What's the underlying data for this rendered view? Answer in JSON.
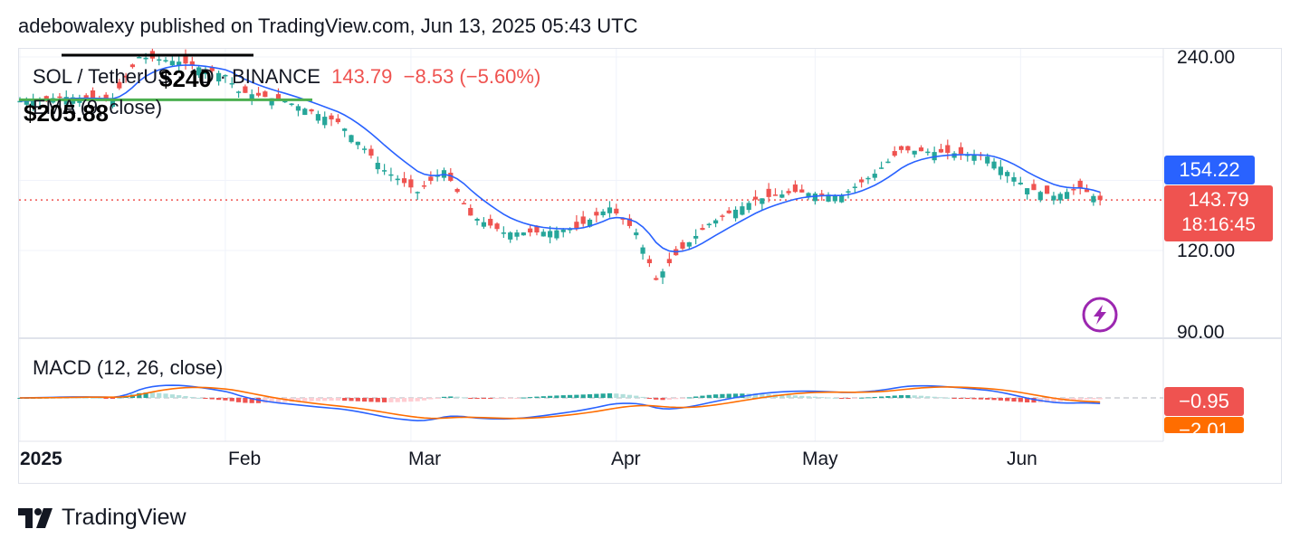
{
  "header": {
    "publish_line": "adebowalexy published on TradingView.com, Jun 13, 2025 05:43 UTC"
  },
  "legend": {
    "symbol": "SOL / TetherUS · 1D · BINANCE",
    "last": "143.79",
    "change": "−8.53 (−5.60%)",
    "ema": "EMA (9, close)"
  },
  "annotations": {
    "high_label": "$240",
    "low_label": "$205.88"
  },
  "price_axis": {
    "ticks": [
      "240.00",
      "120.00",
      "90.00"
    ],
    "ema_tag": "154.22",
    "last_tag": "143.79",
    "countdown": "18:16:45"
  },
  "macd": {
    "legend": "MACD (12, 26, close)",
    "hist_tag": "−0.95",
    "signal_tag": "−2.01"
  },
  "time_axis": {
    "labels": [
      "2025",
      "Feb",
      "Mar",
      "Apr",
      "May",
      "Jun"
    ]
  },
  "footer": {
    "brand": "TradingView"
  },
  "colors": {
    "up": "#26a69a",
    "down": "#ef5350",
    "ema": "#2962ff",
    "macd_line": "#2962ff",
    "signal_line": "#ff6d00",
    "level": "#4caf50",
    "bolt": "#9c27b0"
  },
  "chart_data": {
    "type": "candlestick",
    "symbol": "SOL / TetherUS",
    "interval": "1D",
    "exchange": "BINANCE",
    "last_price": 143.79,
    "ema9_last": 154.22,
    "y_axis_ticks": [
      240.0,
      120.0,
      90.0
    ],
    "x_axis_labels": [
      "2025",
      "Feb",
      "Mar",
      "Apr",
      "May",
      "Jun"
    ],
    "close_series": {
      "x_dates": [
        "2025-01-01",
        "2025-01-08",
        "2025-01-15",
        "2025-01-19",
        "2025-01-25",
        "2025-02-01",
        "2025-02-03",
        "2025-02-10",
        "2025-02-18",
        "2025-02-25",
        "2025-03-02",
        "2025-03-06",
        "2025-03-10",
        "2025-03-15",
        "2025-03-20",
        "2025-03-26",
        "2025-03-31",
        "2025-04-04",
        "2025-04-07",
        "2025-04-10",
        "2025-04-15",
        "2025-04-22",
        "2025-04-28",
        "2025-05-05",
        "2025-05-10",
        "2025-05-14",
        "2025-05-22",
        "2025-05-27",
        "2025-06-02",
        "2025-06-06",
        "2025-06-10",
        "2025-06-13"
      ],
      "values": [
        205,
        208,
        206,
        240,
        236,
        225,
        212,
        205,
        190,
        160,
        148,
        160,
        136,
        128,
        128,
        130,
        140,
        128,
        108,
        118,
        132,
        144,
        148,
        146,
        158,
        172,
        170,
        168,
        150,
        146,
        150,
        143.79
      ]
    },
    "levels": [
      {
        "label": "$240",
        "value": 240
      },
      {
        "label": "$205.88",
        "value": 205.88
      }
    ],
    "macd": {
      "params": "12, 26, close",
      "histogram_last": -0.95,
      "signal_last": -2.01
    }
  }
}
